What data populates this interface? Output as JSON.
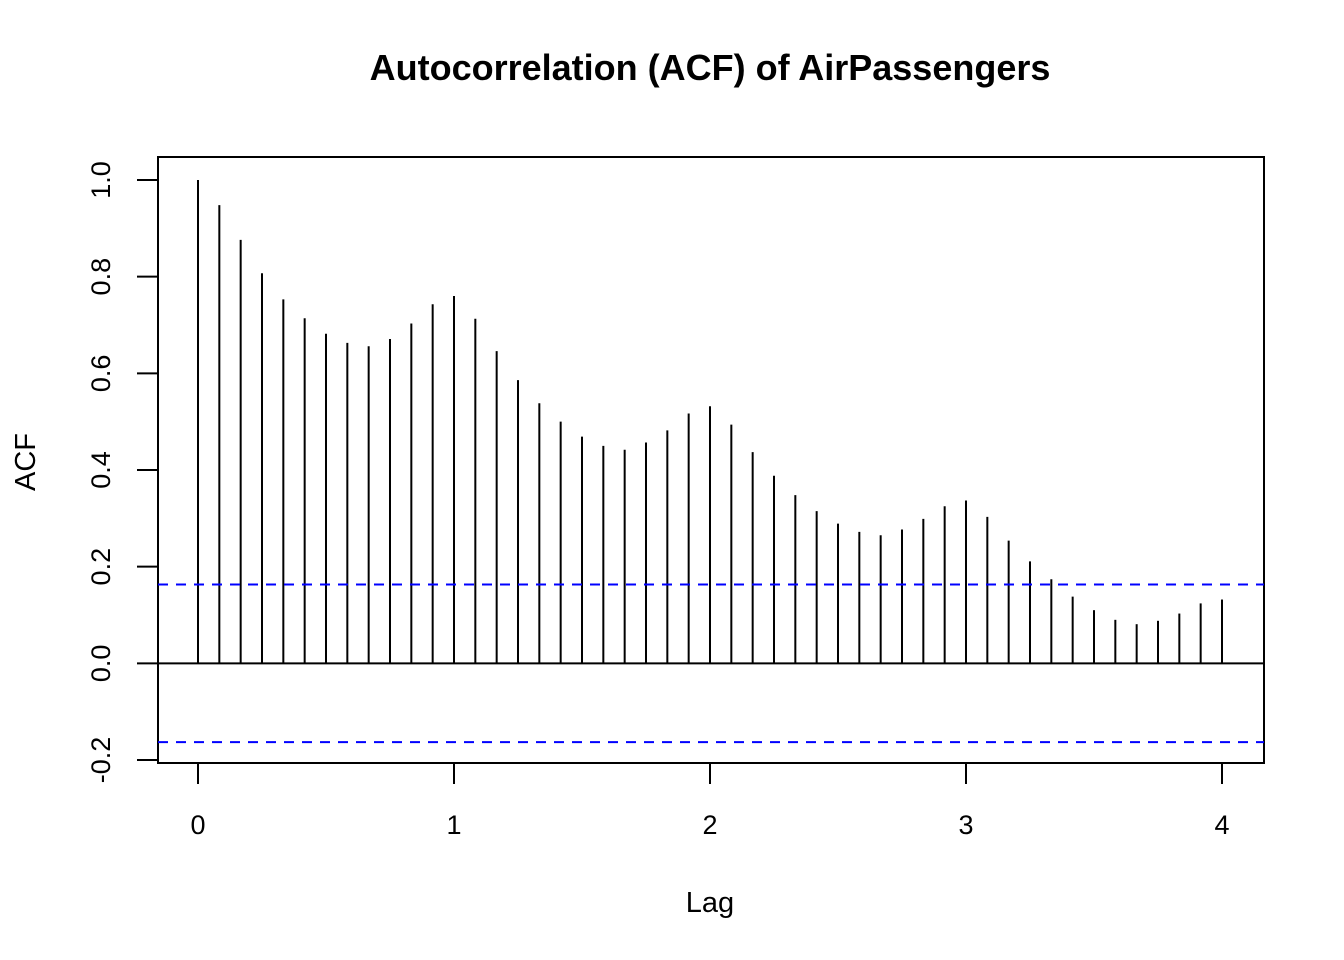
{
  "chart_data": {
    "type": "bar",
    "title": "Autocorrelation (ACF) of AirPassengers",
    "xlabel": "Lag",
    "ylabel": "ACF",
    "xlim": [
      0,
      4
    ],
    "ylim": [
      -0.2,
      1.0
    ],
    "x_ticks": [
      "0",
      "1",
      "2",
      "3",
      "4"
    ],
    "y_ticks": [
      "-0.2",
      "0.0",
      "0.2",
      "0.4",
      "0.6",
      "0.8",
      "1.0"
    ],
    "lag_step": 0.0833333,
    "values": [
      1.0,
      0.948,
      0.876,
      0.807,
      0.753,
      0.714,
      0.682,
      0.663,
      0.656,
      0.671,
      0.703,
      0.743,
      0.76,
      0.713,
      0.646,
      0.586,
      0.538,
      0.5,
      0.469,
      0.45,
      0.442,
      0.457,
      0.482,
      0.517,
      0.532,
      0.494,
      0.437,
      0.388,
      0.348,
      0.315,
      0.289,
      0.272,
      0.265,
      0.277,
      0.299,
      0.325,
      0.337,
      0.303,
      0.254,
      0.211,
      0.174,
      0.138,
      0.11,
      0.09,
      0.081,
      0.088,
      0.103,
      0.124,
      0.132
    ],
    "confidence_band": 0.163,
    "colors": {
      "bars": "#000000",
      "confidence_lines": "#0000ff",
      "zero_line": "#000000"
    },
    "grid": false
  }
}
